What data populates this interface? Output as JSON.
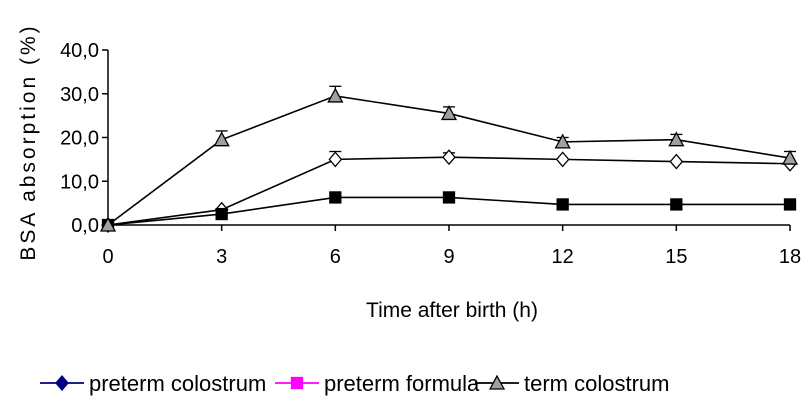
{
  "chart_data": {
    "type": "line",
    "title": "",
    "xlabel": "Time after birth (h)",
    "ylabel": "BSA absorption (%)",
    "x": [
      0,
      3,
      6,
      9,
      12,
      15,
      18
    ],
    "x_tick_labels": [
      "0",
      "3",
      "6",
      "9",
      "12",
      "15",
      "18"
    ],
    "ylim": [
      0,
      40
    ],
    "y_ticks": [
      0,
      10,
      20,
      30,
      40
    ],
    "y_tick_labels": [
      "0,0",
      "10,0",
      "20,0",
      "30,0",
      "40,0"
    ],
    "grid": false,
    "legend_position": "bottom",
    "series": [
      {
        "name": "preterm colostrum",
        "marker": "diamond",
        "plot_color": "#000000",
        "legend_color": "#000080",
        "marker_fill": "#ffffff",
        "values": [
          0,
          3.5,
          15.0,
          15.5,
          15.0,
          14.5,
          14.0
        ],
        "errors": [
          0,
          0,
          1.8,
          1.0,
          0,
          0,
          0
        ]
      },
      {
        "name": "preterm formula",
        "marker": "square",
        "plot_color": "#000000",
        "legend_color": "#ff00ff",
        "marker_fill": "#000000",
        "values": [
          0,
          2.5,
          6.3,
          6.3,
          4.7,
          4.7,
          4.7
        ],
        "errors": [
          0,
          0,
          0,
          0,
          0,
          0,
          0
        ]
      },
      {
        "name": "term colostrum",
        "marker": "triangle",
        "plot_color": "#000000",
        "legend_color": "#000000",
        "marker_fill": "#a0a0a0",
        "values": [
          0,
          19.5,
          29.5,
          25.5,
          19.0,
          19.5,
          15.3
        ],
        "errors": [
          0,
          2.0,
          2.2,
          1.5,
          1.0,
          1.2,
          1.5
        ]
      }
    ]
  }
}
